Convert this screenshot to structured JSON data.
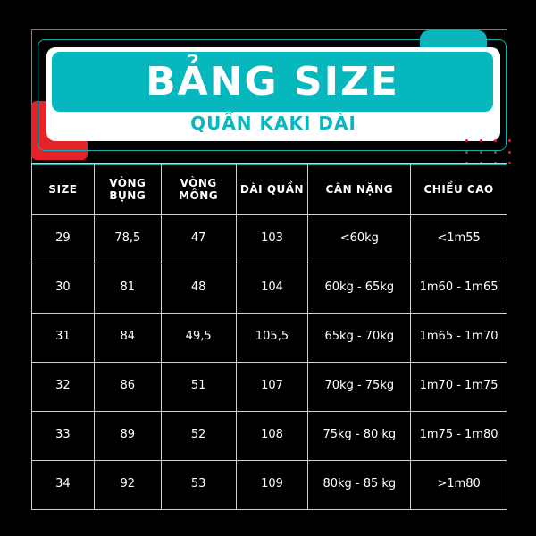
{
  "banner": {
    "title": "BẢNG SIZE",
    "subtitle": "QUẦN KAKI DÀI"
  },
  "colors": {
    "teal": "#06b7bd",
    "red": "#e3222a",
    "background": "#000000"
  },
  "table": {
    "headers": [
      "SIZE",
      "VÒNG BỤNG",
      "VÒNG MÔNG",
      "DÀI QUẦN",
      "CÂN NẶNG",
      "CHIỀU CAO"
    ],
    "rows": [
      [
        "29",
        "78,5",
        "47",
        "103",
        "<60kg",
        "<1m55"
      ],
      [
        "30",
        "81",
        "48",
        "104",
        "60kg - 65kg",
        "1m60 - 1m65"
      ],
      [
        "31",
        "84",
        "49,5",
        "105,5",
        "65kg - 70kg",
        "1m65 - 1m70"
      ],
      [
        "32",
        "86",
        "51",
        "107",
        "70kg - 75kg",
        "1m70 - 1m75"
      ],
      [
        "33",
        "89",
        "52",
        "108",
        "75kg - 80 kg",
        "1m75 - 1m80"
      ],
      [
        "34",
        "92",
        "53",
        "109",
        "80kg - 85 kg",
        ">1m80"
      ]
    ]
  }
}
